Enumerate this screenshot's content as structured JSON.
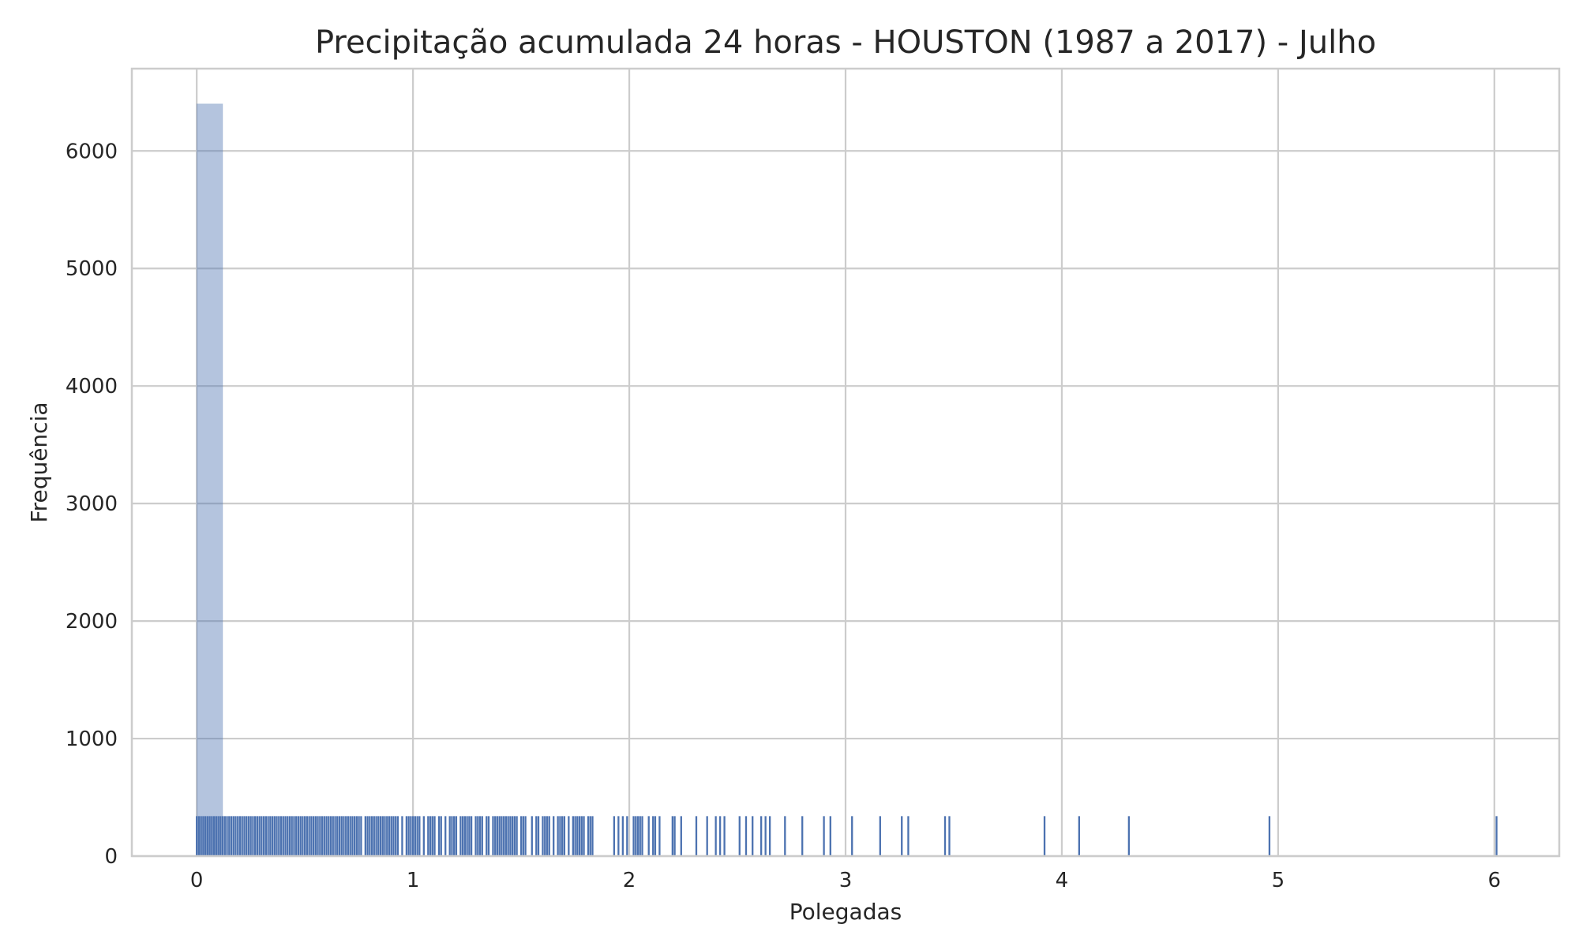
{
  "chart_data": {
    "type": "histogram",
    "title": "Precipitação acumulada 24 horas - HOUSTON (1987 a 2017) - Julho",
    "xlabel": "Polegadas",
    "ylabel": "Frequência",
    "xlim": [
      -0.3,
      6.3
    ],
    "ylim": [
      0,
      6700
    ],
    "xticks": [
      0,
      1,
      2,
      3,
      4,
      5,
      6
    ],
    "yticks": [
      0,
      1000,
      2000,
      3000,
      4000,
      5000,
      6000
    ],
    "grid": true,
    "histogram": {
      "bins": [
        {
          "start": 0.0,
          "end": 0.12,
          "count": 6400
        }
      ]
    },
    "rug": {
      "height_in_frequency_units": 340,
      "values": [
        0.0,
        0.01,
        0.02,
        0.03,
        0.04,
        0.05,
        0.06,
        0.07,
        0.08,
        0.09,
        0.1,
        0.11,
        0.12,
        0.13,
        0.14,
        0.15,
        0.16,
        0.17,
        0.18,
        0.19,
        0.2,
        0.21,
        0.22,
        0.23,
        0.24,
        0.25,
        0.26,
        0.27,
        0.28,
        0.29,
        0.3,
        0.31,
        0.32,
        0.33,
        0.34,
        0.35,
        0.36,
        0.37,
        0.38,
        0.39,
        0.4,
        0.41,
        0.42,
        0.43,
        0.44,
        0.45,
        0.46,
        0.47,
        0.48,
        0.49,
        0.5,
        0.51,
        0.52,
        0.53,
        0.54,
        0.55,
        0.56,
        0.57,
        0.58,
        0.59,
        0.6,
        0.61,
        0.62,
        0.63,
        0.64,
        0.65,
        0.66,
        0.67,
        0.68,
        0.69,
        0.7,
        0.71,
        0.72,
        0.73,
        0.74,
        0.75,
        0.76,
        0.78,
        0.79,
        0.8,
        0.81,
        0.82,
        0.83,
        0.84,
        0.85,
        0.86,
        0.87,
        0.88,
        0.89,
        0.9,
        0.91,
        0.92,
        0.93,
        0.95,
        0.97,
        0.98,
        0.99,
        1.0,
        1.01,
        1.02,
        1.03,
        1.05,
        1.07,
        1.08,
        1.09,
        1.1,
        1.12,
        1.13,
        1.15,
        1.17,
        1.18,
        1.19,
        1.2,
        1.22,
        1.23,
        1.24,
        1.25,
        1.26,
        1.27,
        1.29,
        1.3,
        1.31,
        1.32,
        1.34,
        1.35,
        1.37,
        1.38,
        1.39,
        1.4,
        1.41,
        1.42,
        1.43,
        1.44,
        1.45,
        1.46,
        1.47,
        1.48,
        1.5,
        1.51,
        1.52,
        1.55,
        1.57,
        1.58,
        1.6,
        1.61,
        1.62,
        1.63,
        1.65,
        1.67,
        1.68,
        1.69,
        1.7,
        1.72,
        1.74,
        1.75,
        1.76,
        1.77,
        1.78,
        1.79,
        1.81,
        1.82,
        1.83,
        1.93,
        1.95,
        1.97,
        1.99,
        2.02,
        2.03,
        2.04,
        2.05,
        2.06,
        2.09,
        2.11,
        2.12,
        2.14,
        2.2,
        2.21,
        2.24,
        2.31,
        2.36,
        2.4,
        2.42,
        2.44,
        2.51,
        2.54,
        2.57,
        2.61,
        2.63,
        2.65,
        2.72,
        2.8,
        2.9,
        2.93,
        3.03,
        3.16,
        3.26,
        3.29,
        3.46,
        3.48,
        3.92,
        4.08,
        4.31,
        4.96,
        6.01
      ]
    }
  }
}
